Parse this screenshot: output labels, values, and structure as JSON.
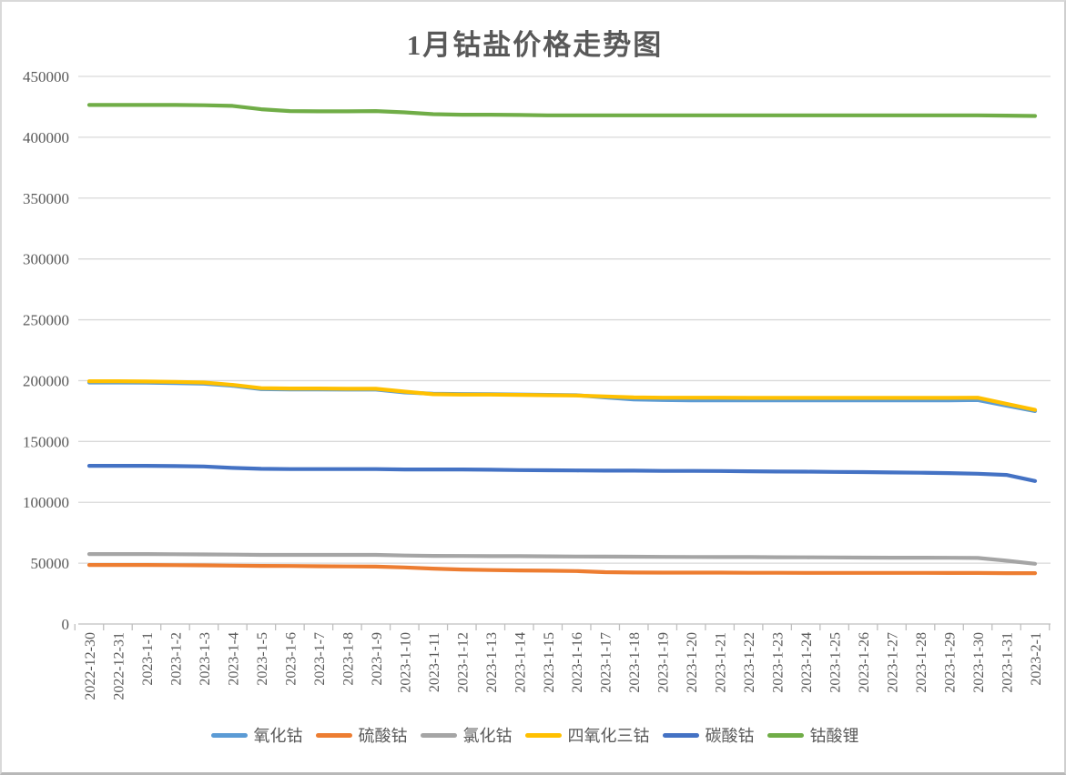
{
  "chart_data": {
    "type": "line",
    "title": "1月钴盐价格走势图",
    "xlabel": "",
    "ylabel": "",
    "ylim": [
      0,
      450000
    ],
    "y_ticks": [
      0,
      50000,
      100000,
      150000,
      200000,
      250000,
      300000,
      350000,
      400000,
      450000
    ],
    "grid": true,
    "legend_position": "bottom",
    "categories": [
      "2022-12-30",
      "2022-12-31",
      "2023-1-1",
      "2023-1-2",
      "2023-1-3",
      "2023-1-4",
      "2023-1-5",
      "2023-1-6",
      "2023-1-7",
      "2023-1-8",
      "2023-1-9",
      "2023-1-10",
      "2023-1-11",
      "2023-1-12",
      "2023-1-13",
      "2023-1-14",
      "2023-1-15",
      "2023-1-16",
      "2023-1-17",
      "2023-1-18",
      "2023-1-19",
      "2023-1-20",
      "2023-1-21",
      "2023-1-22",
      "2023-1-23",
      "2023-1-24",
      "2023-1-25",
      "2023-1-26",
      "2023-1-27",
      "2023-1-28",
      "2023-1-29",
      "2023-1-30",
      "2023-1-31",
      "2023-2-1"
    ],
    "series": [
      {
        "name": "氧化钴",
        "color": "#5B9BD5",
        "values": [
          198500,
          198500,
          198300,
          198000,
          197500,
          195800,
          193000,
          192800,
          192800,
          192600,
          192600,
          190300,
          189200,
          189000,
          188800,
          188600,
          188300,
          188000,
          186200,
          184500,
          184000,
          183800,
          183800,
          183800,
          183800,
          183800,
          183800,
          183800,
          183800,
          183800,
          183800,
          184000,
          179500,
          175000
        ]
      },
      {
        "name": "硫酸钴",
        "color": "#ED7D31",
        "values": [
          48500,
          48500,
          48500,
          48400,
          48200,
          48000,
          47800,
          47700,
          47500,
          47300,
          47200,
          46500,
          45500,
          44800,
          44300,
          44000,
          43800,
          43500,
          42600,
          42300,
          42200,
          42200,
          42200,
          42100,
          42100,
          42000,
          42000,
          42000,
          42000,
          42000,
          41900,
          41900,
          41800,
          41800
        ]
      },
      {
        "name": "氯化钴",
        "color": "#A5A5A5",
        "values": [
          57500,
          57500,
          57500,
          57300,
          57200,
          57000,
          56800,
          56800,
          56800,
          56800,
          56800,
          56300,
          56000,
          55900,
          55800,
          55800,
          55600,
          55500,
          55400,
          55300,
          55200,
          55100,
          55000,
          55000,
          54900,
          54800,
          54700,
          54600,
          54500,
          54500,
          54400,
          54300,
          52000,
          49500
        ]
      },
      {
        "name": "四氧化三钴",
        "color": "#FFC000",
        "values": [
          199500,
          199500,
          199300,
          199000,
          198500,
          196500,
          193800,
          193500,
          193500,
          193300,
          193300,
          191000,
          188800,
          188500,
          188500,
          188300,
          188000,
          187800,
          187000,
          186200,
          186000,
          186000,
          186000,
          185800,
          185800,
          185800,
          185800,
          185800,
          185800,
          185800,
          185800,
          186000,
          181000,
          176000
        ]
      },
      {
        "name": "碳酸钴",
        "color": "#4472C4",
        "values": [
          130000,
          130000,
          130000,
          129800,
          129500,
          128300,
          127500,
          127300,
          127300,
          127300,
          127300,
          127000,
          127000,
          127000,
          126800,
          126500,
          126300,
          126200,
          126000,
          126000,
          125800,
          125800,
          125700,
          125500,
          125300,
          125200,
          125000,
          124800,
          124500,
          124300,
          124000,
          123500,
          122500,
          117500
        ]
      },
      {
        "name": "钴酸锂",
        "color": "#70AD47",
        "values": [
          426500,
          426500,
          426500,
          426500,
          426300,
          425800,
          423000,
          421500,
          421300,
          421300,
          421500,
          420500,
          419000,
          418500,
          418500,
          418300,
          418000,
          418000,
          418000,
          418000,
          418000,
          418000,
          418000,
          418000,
          418000,
          418000,
          418000,
          418000,
          418000,
          418000,
          418000,
          418000,
          417800,
          417500
        ]
      }
    ],
    "colors": {
      "gridline": "#D9D9D9",
      "axis": "#BFBFBF",
      "text": "#595959"
    }
  }
}
